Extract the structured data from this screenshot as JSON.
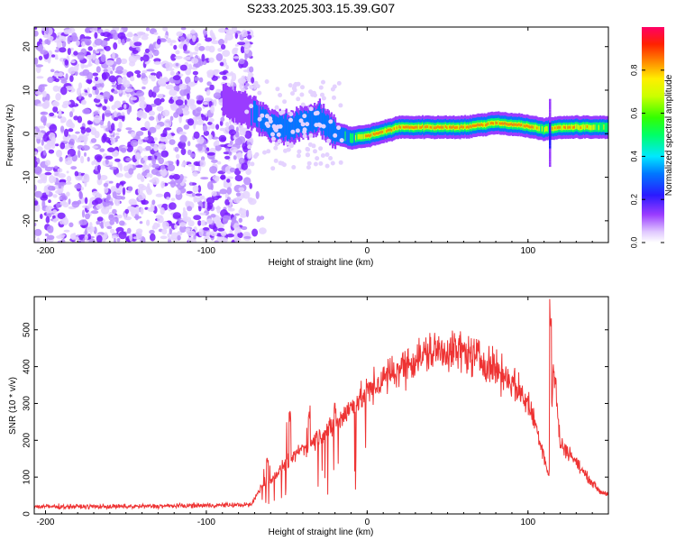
{
  "figure_title": "S233.2025.303.15.39.G07",
  "colors": {
    "axis": "#000000",
    "snr_line": "#ee3333",
    "background": "#ffffff"
  },
  "chart_data": [
    {
      "type": "heatmap",
      "title": "S233.2025.303.15.39.G07",
      "xlabel": "Height of straight line (km)",
      "ylabel": "Frequency (Hz)",
      "xlim": [
        -207,
        150
      ],
      "ylim": [
        -25,
        24.5
      ],
      "x_ticks": [
        -200,
        -100,
        0,
        100
      ],
      "y_ticks": [
        -20,
        -10,
        0,
        10,
        20
      ],
      "colorbar": {
        "label": "Normalized spectral amplitude",
        "range": [
          0,
          1
        ],
        "ticks": [
          "0.0",
          "0.2",
          "0.4",
          "0.6",
          "0.8"
        ],
        "tick_values": [
          0.0,
          0.2,
          0.4,
          0.6,
          0.8
        ]
      },
      "regions": [
        {
          "description": "noise",
          "x_range": [
            -207,
            -72
          ],
          "freq_range": [
            -25,
            24.5
          ],
          "amplitude": "low (0.0-0.2)"
        },
        {
          "description": "signal ridge",
          "x_range": [
            -90,
            150
          ],
          "amplitude": "0.2-1.0"
        }
      ],
      "ridge_center": {
        "x": [
          -90,
          -80,
          -70,
          -60,
          -50,
          -40,
          -30,
          -20,
          -10,
          0,
          20,
          40,
          60,
          80,
          95,
          110,
          120,
          150
        ],
        "freq": [
          7.5,
          6,
          4.5,
          2,
          1.5,
          2.5,
          3.5,
          0,
          -1,
          -0.5,
          1.5,
          1.5,
          1.5,
          2.5,
          2,
          1,
          1.5,
          1.5
        ],
        "peak_amplitude": [
          0.2,
          0.2,
          0.3,
          0.4,
          0.4,
          0.35,
          0.35,
          0.35,
          0.5,
          0.95,
          0.95,
          0.95,
          0.95,
          0.95,
          0.95,
          0.7,
          0.95,
          0.6
        ]
      }
    },
    {
      "type": "line",
      "title": "",
      "xlabel": "Height of straight line (km)",
      "ylabel": "SNR (10 * v/v)",
      "xlim": [
        -207,
        150
      ],
      "ylim": [
        0,
        590
      ],
      "x_ticks": [
        -200,
        -100,
        0,
        100
      ],
      "y_ticks": [
        0,
        100,
        200,
        300,
        400,
        500
      ],
      "series": [
        {
          "name": "SNR",
          "color": "#ee3333",
          "x": [
            -207,
            -150,
            -72,
            -65,
            -58,
            -50,
            -40,
            -30,
            -20,
            -10,
            0,
            10,
            20,
            30,
            40,
            50,
            60,
            70,
            80,
            90,
            100,
            105,
            110,
            113,
            116,
            120,
            125,
            130,
            135,
            140,
            145,
            150
          ],
          "y": [
            20,
            20,
            25,
            80,
            100,
            140,
            180,
            210,
            240,
            290,
            330,
            365,
            395,
            420,
            440,
            445,
            440,
            420,
            395,
            360,
            300,
            240,
            160,
            100,
            400,
            190,
            170,
            140,
            110,
            85,
            60,
            55
          ],
          "spikes": [
            {
              "x": -62,
              "y": 160
            },
            {
              "x": -48,
              "y": 280
            },
            {
              "x": -36,
              "y": 300
            },
            {
              "x": -20,
              "y": 320
            },
            {
              "x": 114,
              "y": 590
            },
            {
              "x": 117,
              "y": 390
            }
          ]
        }
      ]
    }
  ]
}
